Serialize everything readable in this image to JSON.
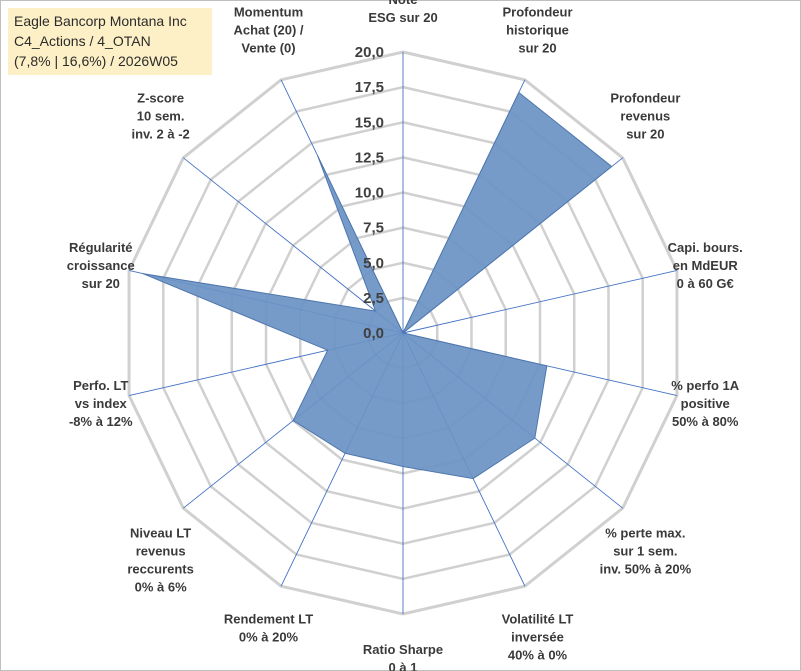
{
  "title": {
    "line1": "Eagle Bancorp Montana Inc",
    "line2": "C4_Actions / 4_OTAN",
    "line3": "(7,8% | 16,6%) / 2026W05"
  },
  "colors": {
    "fill": "#6a92c4",
    "stroke": "#4f77ad",
    "spoke": "#4472c4",
    "grid": "#d0d0d0",
    "background": "#ffffff",
    "title_bg": "#fdf0c6"
  },
  "chart_data": {
    "type": "radar",
    "rmin": 0,
    "rmax": 20,
    "tick_values": [
      0,
      2.5,
      5,
      7.5,
      10,
      12.5,
      15,
      17.5,
      20
    ],
    "tick_labels": [
      "0,0",
      "2,5",
      "5,0",
      "7,5",
      "10,0",
      "12,5",
      "15,0",
      "17,5",
      "20,0"
    ],
    "axes": [
      {
        "label": [
          "Note",
          "ESG sur 20"
        ],
        "value": 0
      },
      {
        "label": [
          "Profondeur",
          "historique",
          "sur 20"
        ],
        "value": 19
      },
      {
        "label": [
          "Profondeur",
          "revenus",
          "sur 20"
        ],
        "value": 19
      },
      {
        "label": [
          "Capi. bours.",
          "en MdEUR",
          "0 à 60 G€"
        ],
        "value": 0
      },
      {
        "label": [
          "% perfo 1A",
          "positive",
          "50% à 80%"
        ],
        "value": 10.5
      },
      {
        "label": [
          "% perte max.",
          "sur 1 sem.",
          "inv. 50% à 20%"
        ],
        "value": 12
      },
      {
        "label": [
          "Volatilité LT",
          "inversée",
          "40% à 0%"
        ],
        "value": 11.5
      },
      {
        "label": [
          "Ratio Sharpe",
          "0 à 1"
        ],
        "value": 9.5
      },
      {
        "label": [
          "Rendement LT",
          "0% à 20%"
        ],
        "value": 9.5
      },
      {
        "label": [
          "Niveau LT",
          "revenus",
          "reccurents",
          "0% à 6%"
        ],
        "value": 10
      },
      {
        "label": [
          "Perfo. LT",
          "vs index",
          "-8% à 12%"
        ],
        "value": 5.5
      },
      {
        "label": [
          "Régularité",
          "croissance",
          "sur 20"
        ],
        "value": 19
      },
      {
        "label": [
          "Z-score",
          "10 sem.",
          "inv. 2 à -2"
        ],
        "value": 2.5
      },
      {
        "label": [
          "Momentum",
          "Achat (20) /",
          "Vente (0)"
        ],
        "value": 14
      }
    ]
  }
}
